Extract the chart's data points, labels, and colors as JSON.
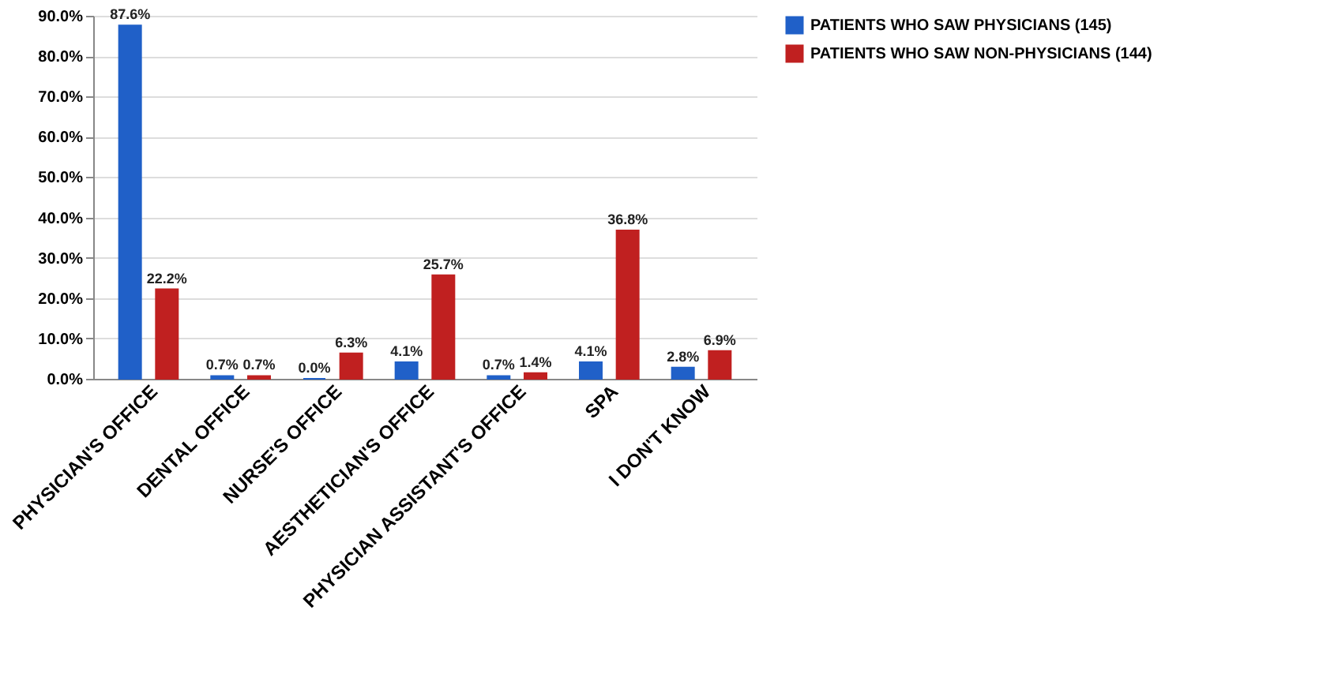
{
  "chart_data": {
    "type": "bar",
    "categories": [
      "PHYSICIAN'S OFFICE",
      "DENTAL OFFICE",
      "NURSE'S OFFICE",
      "AESTHETICIAN'S OFFICE",
      "PHYSICIAN ASSISTANT'S OFFICE",
      "SPA",
      "I DON'T KNOW"
    ],
    "series": [
      {
        "name": "PATIENTS WHO SAW PHYSICIANS (145)",
        "color": "#2060c8",
        "values": [
          87.6,
          0.7,
          0.0,
          4.1,
          0.7,
          4.1,
          2.8
        ],
        "value_labels": [
          "87.6%",
          "0.7%",
          "0.0%",
          "4.1%",
          "0.7%",
          "4.1%",
          "2.8%"
        ]
      },
      {
        "name": "PATIENTS WHO SAW NON-PHYSICIANS (144)",
        "color": "#c02020",
        "values": [
          22.2,
          0.7,
          6.3,
          25.7,
          1.4,
          36.8,
          6.9
        ],
        "value_labels": [
          "22.2%",
          "0.7%",
          "6.3%",
          "25.7%",
          "1.4%",
          "36.8%",
          "6.9%"
        ]
      }
    ],
    "ylim": [
      0,
      90
    ],
    "yticks": [
      {
        "value": 0,
        "label": "0.0%"
      },
      {
        "value": 10,
        "label": "10.0%"
      },
      {
        "value": 20,
        "label": "20.0%"
      },
      {
        "value": 30,
        "label": "30.0%"
      },
      {
        "value": 40,
        "label": "40.0%"
      },
      {
        "value": 50,
        "label": "50.0%"
      },
      {
        "value": 60,
        "label": "60.0%"
      },
      {
        "value": 70,
        "label": "70.0%"
      },
      {
        "value": 80,
        "label": "80.0%"
      },
      {
        "value": 90,
        "label": "90.0%"
      }
    ],
    "grid": "y",
    "legend": "right"
  }
}
